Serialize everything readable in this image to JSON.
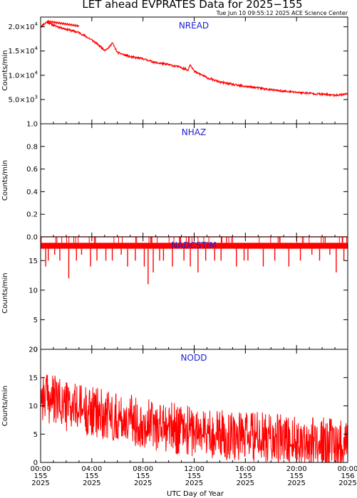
{
  "page": {
    "title": "LET ahead EVPRATES Data for 2025−155",
    "timestamp": "Tue Jun 10 09:55:12 2025 ACE Science Center",
    "xlabel": "UTC Day of Year"
  },
  "colors": {
    "series": "#ff0000",
    "panel_label": "#1f1fd0",
    "axis": "#000000"
  },
  "x_ticks": [
    {
      "hour": 0,
      "time": "00:00",
      "doy": "155",
      "year": "2025"
    },
    {
      "hour": 4,
      "time": "04:00",
      "doy": "155",
      "year": "2025"
    },
    {
      "hour": 8,
      "time": "08:00",
      "doy": "155",
      "year": "2025"
    },
    {
      "hour": 12,
      "time": "12:00",
      "doy": "155",
      "year": "2025"
    },
    {
      "hour": 16,
      "time": "16:00",
      "doy": "155",
      "year": "2025"
    },
    {
      "hour": 20,
      "time": "20:00",
      "doy": "155",
      "year": "2025"
    },
    {
      "hour": 24,
      "time": "00:00",
      "doy": "156",
      "year": "2025"
    }
  ],
  "chart_data": [
    {
      "type": "line",
      "panel": "NREAD",
      "ylabel": "Counts/min",
      "xlim": [
        0,
        24
      ],
      "ylim": [
        0,
        22000
      ],
      "yticks": [
        {
          "value": 5000,
          "mant": "5.0×10",
          "exp": "3"
        },
        {
          "value": 10000,
          "mant": "1.0×10",
          "exp": "4"
        },
        {
          "value": 15000,
          "mant": "1.5×10",
          "exp": "4"
        },
        {
          "value": 20000,
          "mant": "2.0×10",
          "exp": "4"
        }
      ],
      "x": [
        0,
        0.5,
        1,
        2,
        3,
        4,
        4.5,
        5,
        5.3,
        5.6,
        6,
        7,
        8,
        9,
        10,
        10.5,
        11,
        11.3,
        11.5,
        11.7,
        12,
        12.5,
        13,
        14,
        15,
        16,
        17,
        18,
        19,
        20,
        21,
        22,
        22.5,
        23,
        23.5,
        24
      ],
      "y": [
        20000,
        21000,
        20300,
        19500,
        18800,
        17300,
        16300,
        15200,
        15600,
        16700,
        14700,
        13800,
        13400,
        12600,
        12200,
        11900,
        11600,
        11300,
        11000,
        12300,
        10800,
        10200,
        9500,
        8600,
        8100,
        7700,
        7400,
        7000,
        6700,
        6500,
        6300,
        6100,
        6000,
        5900,
        6000,
        6200
      ],
      "noise": 200
    },
    {
      "type": "line",
      "panel": "NHAZ",
      "ylabel": "Counts/min",
      "xlim": [
        0,
        24
      ],
      "ylim": [
        0,
        1
      ],
      "yticks": [
        {
          "value": 0.0,
          "label": "0.0"
        },
        {
          "value": 0.2,
          "label": "0.2"
        },
        {
          "value": 0.4,
          "label": "0.4"
        },
        {
          "value": 0.6,
          "label": "0.6"
        },
        {
          "value": 0.8,
          "label": "0.8"
        },
        {
          "value": 1.0,
          "label": "1.0"
        }
      ],
      "x": [
        0,
        24
      ],
      "y": [
        0,
        0
      ]
    },
    {
      "type": "line",
      "panel": "NADCSTIM",
      "ylabel": "Counts/min",
      "xlim": [
        0,
        24
      ],
      "ylim": [
        0,
        19
      ],
      "yticks": [
        {
          "value": 0,
          "label": "0"
        },
        {
          "value": 5,
          "label": "5"
        },
        {
          "value": 10,
          "label": "10"
        },
        {
          "value": 15,
          "label": "15"
        }
      ],
      "baseline_band": [
        17,
        18
      ],
      "dips": [
        {
          "x": 0.4,
          "y": 14
        },
        {
          "x": 0.6,
          "y": 15
        },
        {
          "x": 1.1,
          "y": 16
        },
        {
          "x": 1.5,
          "y": 15
        },
        {
          "x": 2.2,
          "y": 12
        },
        {
          "x": 2.8,
          "y": 15
        },
        {
          "x": 3.2,
          "y": 16
        },
        {
          "x": 3.9,
          "y": 14
        },
        {
          "x": 4.4,
          "y": 15
        },
        {
          "x": 5.1,
          "y": 15
        },
        {
          "x": 5.6,
          "y": 15
        },
        {
          "x": 6.3,
          "y": 16
        },
        {
          "x": 6.8,
          "y": 14
        },
        {
          "x": 7.4,
          "y": 15
        },
        {
          "x": 8.1,
          "y": 14
        },
        {
          "x": 8.4,
          "y": 11
        },
        {
          "x": 8.8,
          "y": 13
        },
        {
          "x": 9.3,
          "y": 15
        },
        {
          "x": 9.6,
          "y": 15
        },
        {
          "x": 10.3,
          "y": 14
        },
        {
          "x": 11.2,
          "y": 15
        },
        {
          "x": 11.7,
          "y": 14
        },
        {
          "x": 12.3,
          "y": 13
        },
        {
          "x": 12.9,
          "y": 15
        },
        {
          "x": 13.6,
          "y": 15
        },
        {
          "x": 14.1,
          "y": 15
        },
        {
          "x": 15.3,
          "y": 14
        },
        {
          "x": 15.9,
          "y": 15
        },
        {
          "x": 16.2,
          "y": 15
        },
        {
          "x": 17.4,
          "y": 14
        },
        {
          "x": 18.3,
          "y": 15
        },
        {
          "x": 19.4,
          "y": 14
        },
        {
          "x": 20.3,
          "y": 15
        },
        {
          "x": 21.2,
          "y": 16
        },
        {
          "x": 21.8,
          "y": 15
        },
        {
          "x": 22.6,
          "y": 16
        },
        {
          "x": 23.1,
          "y": 13
        },
        {
          "x": 23.7,
          "y": 15
        }
      ]
    },
    {
      "type": "line",
      "panel": "NODD",
      "ylabel": "Counts/min",
      "xlim": [
        0,
        24
      ],
      "ylim": [
        0,
        20
      ],
      "yticks": [
        {
          "value": 0,
          "label": "0"
        },
        {
          "value": 5,
          "label": "5"
        },
        {
          "value": 10,
          "label": "10"
        },
        {
          "value": 15,
          "label": "15"
        },
        {
          "value": 20,
          "label": "20"
        }
      ],
      "trend_x": [
        0,
        2,
        4,
        6,
        8,
        10,
        12,
        14,
        16,
        18,
        20,
        22,
        24
      ],
      "trend_y": [
        12,
        10,
        9,
        8,
        7,
        6.2,
        5.5,
        5,
        4.6,
        4.2,
        3.8,
        3.5,
        3.3
      ],
      "noise": 4.5,
      "samples": 900
    }
  ]
}
